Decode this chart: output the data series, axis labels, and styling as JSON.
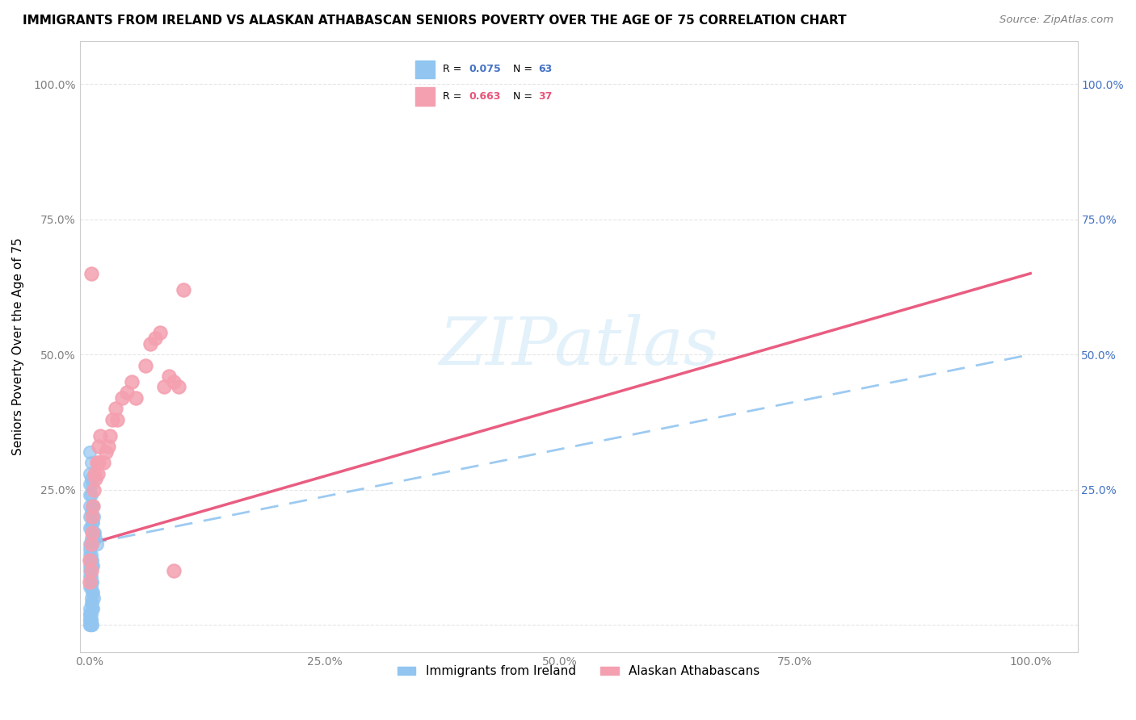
{
  "title": "IMMIGRANTS FROM IRELAND VS ALASKAN ATHABASCAN SENIORS POVERTY OVER THE AGE OF 75 CORRELATION CHART",
  "source": "Source: ZipAtlas.com",
  "ylabel": "Seniors Poverty Over the Age of 75",
  "legend_entries": [
    "Immigrants from Ireland",
    "Alaskan Athabascans"
  ],
  "ireland_color": "#92C5F0",
  "athabascan_color": "#F4A0B0",
  "ireland_r_val": "0.075",
  "ireland_n_val": "63",
  "athabascan_r_val": "0.663",
  "athabascan_n_val": "37",
  "ireland_r_color": "#4472C4",
  "athabascan_r_color": "#E8547A",
  "ireland_line_color": "#92C5F0",
  "athabascan_line_color": "#E8547A",
  "watermark": "ZIPatlas",
  "background_color": "#FFFFFF",
  "grid_color": "#E0E0E0",
  "right_axis_color": "#4472C4",
  "xticks": [
    0.0,
    0.25,
    0.5,
    0.75,
    1.0
  ],
  "xtick_labels": [
    "0.0%",
    "25.0%",
    "50.0%",
    "75.0%",
    "100.0%"
  ],
  "yticks": [
    0.0,
    0.25,
    0.5,
    0.75,
    1.0
  ],
  "ytick_labels": [
    "",
    "25.0%",
    "50.0%",
    "75.0%",
    "100.0%"
  ],
  "ireland_x": [
    0.001,
    0.001,
    0.001,
    0.001,
    0.001,
    0.001,
    0.001,
    0.002,
    0.002,
    0.002,
    0.002,
    0.002,
    0.002,
    0.003,
    0.003,
    0.003,
    0.003,
    0.004,
    0.004,
    0.004,
    0.005,
    0.005,
    0.006,
    0.007,
    0.008,
    0.001,
    0.001,
    0.001,
    0.001,
    0.001,
    0.002,
    0.002,
    0.003,
    0.003,
    0.004,
    0.001,
    0.001,
    0.002,
    0.002,
    0.003,
    0.001,
    0.002,
    0.003,
    0.004,
    0.005,
    0.002,
    0.002,
    0.003,
    0.003,
    0.004,
    0.001,
    0.001,
    0.001,
    0.002,
    0.002,
    0.001,
    0.001,
    0.002,
    0.002,
    0.003,
    0.001,
    0.001,
    0.002
  ],
  "ireland_y": [
    0.32,
    0.28,
    0.26,
    0.24,
    0.22,
    0.2,
    0.18,
    0.3,
    0.27,
    0.24,
    0.21,
    0.18,
    0.16,
    0.26,
    0.22,
    0.19,
    0.15,
    0.22,
    0.19,
    0.16,
    0.2,
    0.17,
    0.17,
    0.16,
    0.15,
    0.15,
    0.14,
    0.13,
    0.12,
    0.11,
    0.13,
    0.12,
    0.12,
    0.11,
    0.11,
    0.1,
    0.09,
    0.09,
    0.08,
    0.08,
    0.07,
    0.07,
    0.06,
    0.06,
    0.05,
    0.05,
    0.04,
    0.04,
    0.03,
    0.03,
    0.03,
    0.02,
    0.02,
    0.02,
    0.01,
    0.01,
    0.01,
    0.01,
    0.0,
    0.0,
    0.0,
    0.0,
    0.0
  ],
  "athabascan_x": [
    0.001,
    0.001,
    0.002,
    0.002,
    0.003,
    0.003,
    0.004,
    0.005,
    0.006,
    0.007,
    0.008,
    0.009,
    0.01,
    0.01,
    0.012,
    0.015,
    0.018,
    0.02,
    0.022,
    0.025,
    0.028,
    0.03,
    0.035,
    0.04,
    0.045,
    0.05,
    0.06,
    0.065,
    0.07,
    0.075,
    0.08,
    0.085,
    0.09,
    0.095,
    0.1,
    0.002,
    0.09
  ],
  "athabascan_y": [
    0.12,
    0.08,
    0.15,
    0.1,
    0.2,
    0.17,
    0.22,
    0.25,
    0.28,
    0.27,
    0.3,
    0.28,
    0.33,
    0.3,
    0.35,
    0.3,
    0.32,
    0.33,
    0.35,
    0.38,
    0.4,
    0.38,
    0.42,
    0.43,
    0.45,
    0.42,
    0.48,
    0.52,
    0.53,
    0.54,
    0.44,
    0.46,
    0.45,
    0.44,
    0.62,
    0.65,
    0.1
  ],
  "ireland_line_x0": 0.0,
  "ireland_line_y0": 0.15,
  "ireland_line_x1": 1.0,
  "ireland_line_y1": 0.5,
  "atha_line_x0": 0.0,
  "atha_line_y0": 0.15,
  "atha_line_x1": 1.0,
  "atha_line_y1": 0.65
}
